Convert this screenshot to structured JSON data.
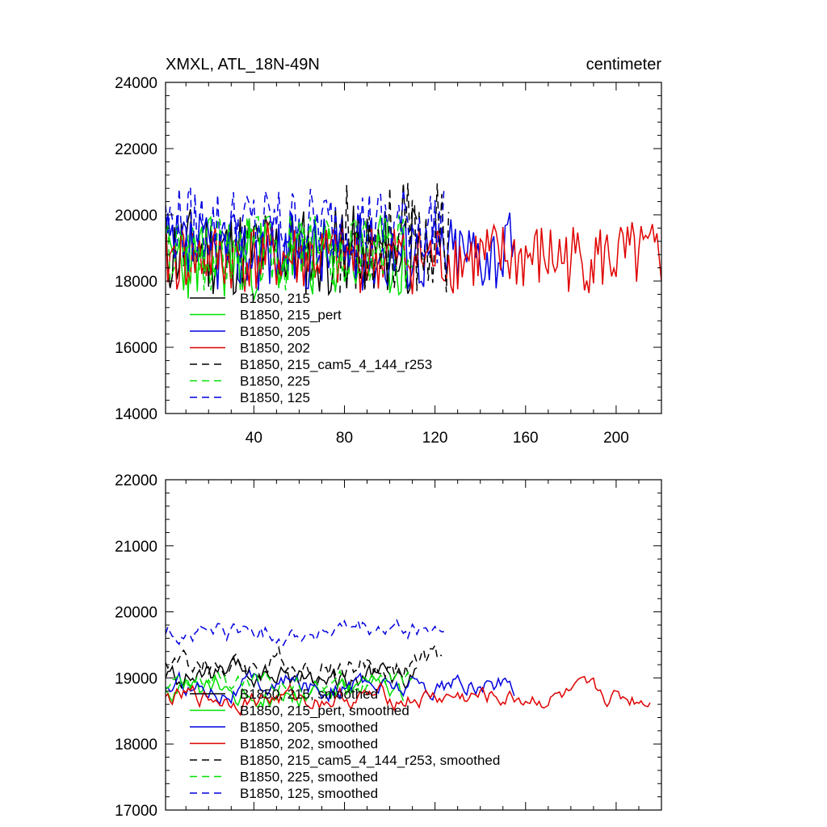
{
  "colors": {
    "black": "#000000",
    "green": "#00e000",
    "blue": "#0000e0",
    "red": "#e00000"
  },
  "chart_data": [
    {
      "type": "line",
      "title_left": "XMXL, ATL_18N-49N",
      "title_right": "centimeter",
      "xlim": [
        1,
        220
      ],
      "ylim": [
        14000,
        24000
      ],
      "xticks": [
        40,
        80,
        120,
        160,
        200
      ],
      "yticks": [
        14000,
        16000,
        18000,
        20000,
        22000,
        24000
      ],
      "xtick_labels": [
        "40",
        "80",
        "120",
        "160",
        "200"
      ],
      "ytick_labels": [
        "14000",
        "16000",
        "18000",
        "20000",
        "22000",
        "24000"
      ],
      "legend_position": "lower-left",
      "series": [
        {
          "name": "B1850, 215",
          "color": "black",
          "dash": "solid",
          "x_start": 1,
          "x_end": 112,
          "base": 18900,
          "amp": 1400,
          "seed": 11
        },
        {
          "name": "B1850, 215_pert",
          "color": "green",
          "dash": "solid",
          "x_start": 1,
          "x_end": 106,
          "base": 18700,
          "amp": 1300,
          "seed": 23
        },
        {
          "name": "B1850, 205",
          "color": "blue",
          "dash": "solid",
          "x_start": 1,
          "x_end": 155,
          "base": 18900,
          "amp": 1200,
          "seed": 37
        },
        {
          "name": "B1850, 202",
          "color": "red",
          "dash": "solid",
          "x_start": 1,
          "x_end": 220,
          "base": 18700,
          "amp": 1100,
          "seed": 41
        },
        {
          "name": "B1850, 215_cam5_4_144_r253",
          "color": "black",
          "dash": "dashed",
          "x_start": 78,
          "x_end": 126,
          "base": 19300,
          "amp": 1700,
          "seed": 53
        },
        {
          "name": "B1850, 225",
          "color": "green",
          "dash": "dashed",
          "x_start": 1,
          "x_end": 110,
          "base": 18900,
          "amp": 1200,
          "seed": 67
        },
        {
          "name": "B1850, 125",
          "color": "blue",
          "dash": "dashed",
          "x_start": 1,
          "x_end": 124,
          "base": 19700,
          "amp": 1200,
          "seed": 79
        }
      ]
    },
    {
      "type": "line",
      "title_left": "",
      "title_right": "",
      "xlim": [
        1,
        220
      ],
      "ylim": [
        17000,
        22000
      ],
      "xticks": [
        40,
        80,
        120,
        160,
        200
      ],
      "yticks": [
        17000,
        18000,
        19000,
        20000,
        21000,
        22000
      ],
      "xtick_labels": [],
      "ytick_labels": [
        "17000",
        "18000",
        "19000",
        "20000",
        "21000",
        "22000"
      ],
      "legend_position": "lower-left",
      "series": [
        {
          "name": "B1850, 215, smoothed",
          "color": "black",
          "dash": "solid",
          "x_start": 1,
          "x_end": 112,
          "base": 19000,
          "amp": 550,
          "seed": 111
        },
        {
          "name": "B1850, 215_pert, smoothed",
          "color": "green",
          "dash": "solid",
          "x_start": 1,
          "x_end": 106,
          "base": 18800,
          "amp": 550,
          "seed": 123
        },
        {
          "name": "B1850, 205, smoothed",
          "color": "blue",
          "dash": "solid",
          "x_start": 1,
          "x_end": 155,
          "base": 18900,
          "amp": 500,
          "seed": 137
        },
        {
          "name": "B1850, 202, smoothed",
          "color": "red",
          "dash": "solid",
          "x_start": 1,
          "x_end": 215,
          "base": 18700,
          "amp": 450,
          "seed": 141
        },
        {
          "name": "B1850, 215_cam5_4_144_r253, smoothed",
          "color": "black",
          "dash": "dashed",
          "x_start": 1,
          "x_end": 123,
          "base": 19200,
          "amp": 600,
          "seed": 153
        },
        {
          "name": "B1850, 225, smoothed",
          "color": "green",
          "dash": "dashed",
          "x_start": 1,
          "x_end": 110,
          "base": 18900,
          "amp": 450,
          "seed": 167
        },
        {
          "name": "B1850, 125, smoothed",
          "color": "blue",
          "dash": "dashed",
          "x_start": 1,
          "x_end": 124,
          "base": 19700,
          "amp": 450,
          "seed": 179
        }
      ]
    }
  ]
}
